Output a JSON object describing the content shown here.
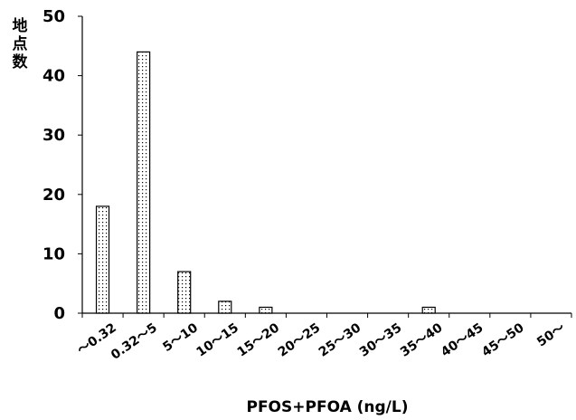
{
  "chart_data": {
    "type": "bar",
    "title": "",
    "xlabel": "PFOS+PFOA (ng/L)",
    "ylabel": [
      "地",
      "点",
      "数"
    ],
    "categories": [
      "～0.32",
      "0.32～5",
      "5～10",
      "10～15",
      "15～20",
      "20～25",
      "25～30",
      "30～35",
      "35～40",
      "40～45",
      "45～50",
      "50～"
    ],
    "values": [
      18,
      44,
      7,
      2,
      1,
      0,
      0,
      0,
      1,
      0,
      0,
      0
    ],
    "ylim": [
      0,
      50
    ],
    "yticks": [
      0,
      10,
      20,
      30,
      40,
      50
    ],
    "grid": false,
    "bar_fill": "dotted",
    "bar_stroke": "#000000"
  }
}
